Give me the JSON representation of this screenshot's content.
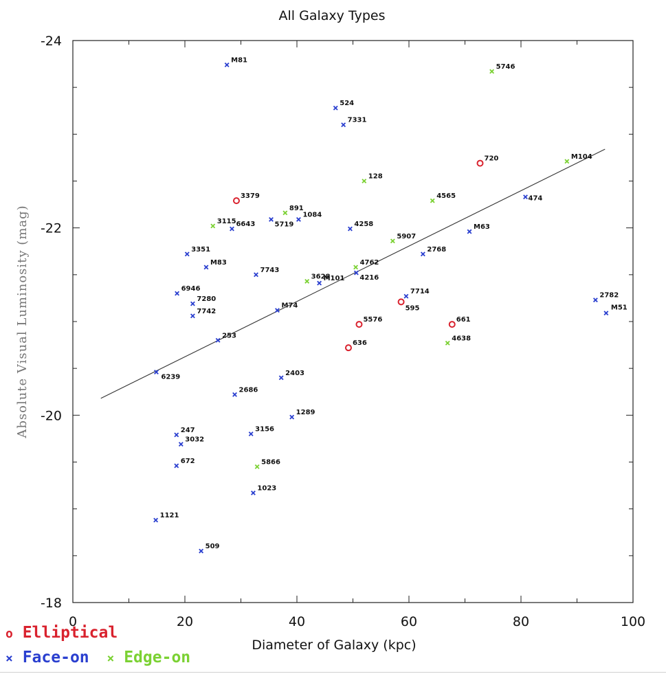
{
  "colors": {
    "elliptical": "#d9222e",
    "face_on": "#2a3fcf",
    "edge_on": "#7bd133",
    "axis": "#222222",
    "fit_line": "#333333"
  },
  "legend": {
    "elliptical": {
      "symbol": "o",
      "label": "Elliptical"
    },
    "face_on": {
      "symbol": "×",
      "label": "Face-on"
    },
    "edge_on": {
      "symbol": "×",
      "label": "Edge-on"
    }
  },
  "chart_data": {
    "type": "scatter",
    "title": "All Galaxy Types",
    "xlabel": "Diameter of Galaxy (kpc)",
    "ylabel": "Absolute Visual Luminosity (mag)",
    "xlim": [
      0,
      100
    ],
    "ylim": [
      -18,
      -24
    ],
    "xticks": [
      0,
      20,
      40,
      60,
      80,
      100
    ],
    "yticks": [
      -18,
      -20,
      -22,
      -24
    ],
    "fit_line": {
      "x": [
        5,
        95
      ],
      "y": [
        -20.18,
        -22.84
      ]
    },
    "series": [
      {
        "name": "Elliptical",
        "type": "elliptical",
        "points": [
          {
            "label": "3379",
            "x": 29.2,
            "y": -22.29
          },
          {
            "label": "720",
            "x": 72.7,
            "y": -22.69
          },
          {
            "label": "595",
            "x": 58.6,
            "y": -21.21
          },
          {
            "label": "5576",
            "x": 51.1,
            "y": -20.97
          },
          {
            "label": "636",
            "x": 49.2,
            "y": -20.72
          },
          {
            "label": "661",
            "x": 67.7,
            "y": -20.97
          }
        ]
      },
      {
        "name": "Face-on",
        "type": "face_on",
        "points": [
          {
            "label": "M81",
            "x": 27.5,
            "y": -23.74
          },
          {
            "label": "524",
            "x": 46.9,
            "y": -23.28
          },
          {
            "label": "7331",
            "x": 48.3,
            "y": -23.1
          },
          {
            "label": "474",
            "x": 80.8,
            "y": -22.33
          },
          {
            "label": "5719",
            "x": 35.4,
            "y": -22.09
          },
          {
            "label": "1084",
            "x": 40.3,
            "y": -22.09
          },
          {
            "label": "6643",
            "x": 28.4,
            "y": -21.99
          },
          {
            "label": "4258",
            "x": 49.5,
            "y": -21.99
          },
          {
            "label": "M63",
            "x": 70.8,
            "y": -21.96
          },
          {
            "label": "3351",
            "x": 20.4,
            "y": -21.72
          },
          {
            "label": "2768",
            "x": 62.5,
            "y": -21.72
          },
          {
            "label": "M83",
            "x": 23.8,
            "y": -21.58
          },
          {
            "label": "7743",
            "x": 32.7,
            "y": -21.5
          },
          {
            "label": "4216",
            "x": 50.6,
            "y": -21.52
          },
          {
            "label": "M101",
            "x": 44.0,
            "y": -21.41
          },
          {
            "label": "6946",
            "x": 18.6,
            "y": -21.3
          },
          {
            "label": "7714",
            "x": 59.5,
            "y": -21.27
          },
          {
            "label": "7280",
            "x": 21.4,
            "y": -21.19
          },
          {
            "label": "2782",
            "x": 93.3,
            "y": -21.23
          },
          {
            "label": "M74",
            "x": 36.5,
            "y": -21.12
          },
          {
            "label": "7742",
            "x": 21.4,
            "y": -21.06
          },
          {
            "label": "M51",
            "x": 95.2,
            "y": -21.09
          },
          {
            "label": "253",
            "x": 25.9,
            "y": -20.8
          },
          {
            "label": "6239",
            "x": 14.9,
            "y": -20.46
          },
          {
            "label": "2403",
            "x": 37.2,
            "y": -20.4
          },
          {
            "label": "2686",
            "x": 28.9,
            "y": -20.22
          },
          {
            "label": "1289",
            "x": 39.1,
            "y": -19.98
          },
          {
            "label": "247",
            "x": 18.5,
            "y": -19.79
          },
          {
            "label": "3156",
            "x": 31.8,
            "y": -19.8
          },
          {
            "label": "3032",
            "x": 19.3,
            "y": -19.69
          },
          {
            "label": "672",
            "x": 18.5,
            "y": -19.46
          },
          {
            "label": "1023",
            "x": 32.2,
            "y": -19.17
          },
          {
            "label": "1121",
            "x": 14.8,
            "y": -18.88
          },
          {
            "label": "509",
            "x": 22.9,
            "y": -18.55
          }
        ]
      },
      {
        "name": "Edge-on",
        "type": "edge_on",
        "points": [
          {
            "label": "5746",
            "x": 74.8,
            "y": -23.67
          },
          {
            "label": "M104",
            "x": 88.2,
            "y": -22.71
          },
          {
            "label": "128",
            "x": 52.0,
            "y": -22.5
          },
          {
            "label": "4565",
            "x": 64.2,
            "y": -22.29
          },
          {
            "label": "891",
            "x": 37.9,
            "y": -22.16
          },
          {
            "label": "3115",
            "x": 25.0,
            "y": -22.02
          },
          {
            "label": "5907",
            "x": 57.1,
            "y": -21.86
          },
          {
            "label": "4762",
            "x": 50.5,
            "y": -21.58
          },
          {
            "label": "3628",
            "x": 41.8,
            "y": -21.43
          },
          {
            "label": "4638",
            "x": 66.9,
            "y": -20.77
          },
          {
            "label": "5866",
            "x": 32.9,
            "y": -19.45
          }
        ]
      }
    ]
  }
}
